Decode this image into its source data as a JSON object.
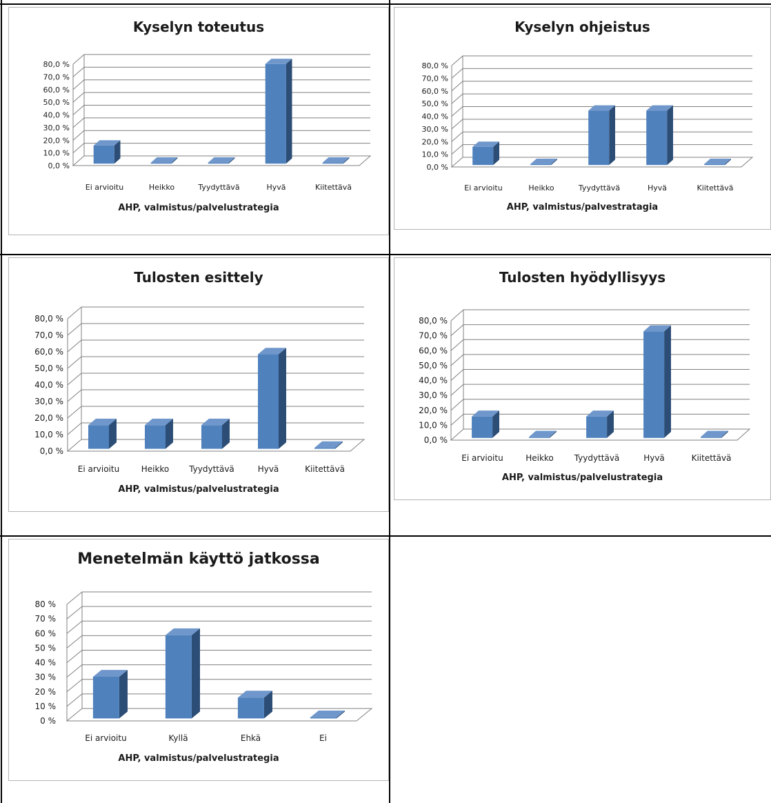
{
  "colors": {
    "bar_front": "#4f81bd",
    "bar_side": "#2c4d75",
    "bar_top": "#6f97cb",
    "grid": "#7f7f7f",
    "frame": "#b4b4b4",
    "table": "#000000"
  },
  "chart_data": [
    {
      "type": "bar",
      "title": "Kyselyn toteutus",
      "xlabel": "AHP, valmistus/palvelustrategia",
      "ylabel": "",
      "categories": [
        "Ei arvioitu",
        "Heikko",
        "Tyydyttävä",
        "Hyvä",
        "Kiitettävä"
      ],
      "values": [
        14.3,
        0.0,
        0.0,
        78.6,
        0.0
      ],
      "yticks": [
        "0,0 %",
        "10,0 %",
        "20,0 %",
        "30,0 %",
        "40,0 %",
        "50,0 %",
        "60,0 %",
        "70,0 %",
        "80,0 %"
      ],
      "ylim": [
        0,
        80
      ],
      "grid": true,
      "legend": "none"
    },
    {
      "type": "bar",
      "title": "Kyselyn ohjeistus",
      "xlabel": "AHP, valmistus/palvestratagia",
      "ylabel": "",
      "categories": [
        "Ei arvioitu",
        "Heikko",
        "Tyydyttävä",
        "Hyvä",
        "Kiitettävä"
      ],
      "values": [
        14.3,
        0.0,
        42.9,
        42.9,
        0.0
      ],
      "yticks": [
        "0,0 %",
        "10,0 %",
        "20,0 %",
        "30,0 %",
        "40,0 %",
        "50,0 %",
        "60,0 %",
        "70,0 %",
        "80,0 %"
      ],
      "ylim": [
        0,
        80
      ],
      "grid": true,
      "legend": "none"
    },
    {
      "type": "bar",
      "title": "Tulosten esittely",
      "xlabel": "AHP, valmistus/palvelustrategia",
      "ylabel": "",
      "categories": [
        "Ei arvioitu",
        "Heikko",
        "Tyydyttävä",
        "Hyvä",
        "Kiitettävä"
      ],
      "values": [
        14.3,
        14.3,
        14.3,
        57.1,
        0.0
      ],
      "yticks": [
        "0,0 %",
        "10,0 %",
        "20,0 %",
        "30,0 %",
        "40,0 %",
        "50,0 %",
        "60,0 %",
        "70,0 %",
        "80,0 %"
      ],
      "ylim": [
        0,
        80
      ],
      "grid": true,
      "legend": "none"
    },
    {
      "type": "bar",
      "title": "Tulosten hyödyllisyys",
      "xlabel": "AHP, valmistus/palvelustrategia",
      "ylabel": "",
      "categories": [
        "Ei arvioitu",
        "Heikko",
        "Tyydyttävä",
        "Hyvä",
        "Kiitettävä"
      ],
      "values": [
        14.3,
        0.0,
        14.3,
        71.4,
        0.0
      ],
      "yticks": [
        "0,0 %",
        "10,0 %",
        "20,0 %",
        "30,0 %",
        "40,0 %",
        "50,0 %",
        "60,0 %",
        "70,0 %",
        "80,0 %"
      ],
      "ylim": [
        0,
        80
      ],
      "grid": true,
      "legend": "none"
    },
    {
      "type": "bar",
      "title": "Menetelmän käyttö jatkossa",
      "xlabel": "AHP, valmistus/palvelustrategia",
      "ylabel": "",
      "categories": [
        "Ei arvioitu",
        "Kyllä",
        "Ehkä",
        "Ei"
      ],
      "values": [
        28.6,
        57.1,
        14.3,
        0.0
      ],
      "yticks": [
        "0 %",
        "10 %",
        "20 %",
        "30 %",
        "40 %",
        "50 %",
        "60 %",
        "70 %",
        "80 %"
      ],
      "ylim": [
        0,
        80
      ],
      "grid": true,
      "legend": "none"
    }
  ]
}
